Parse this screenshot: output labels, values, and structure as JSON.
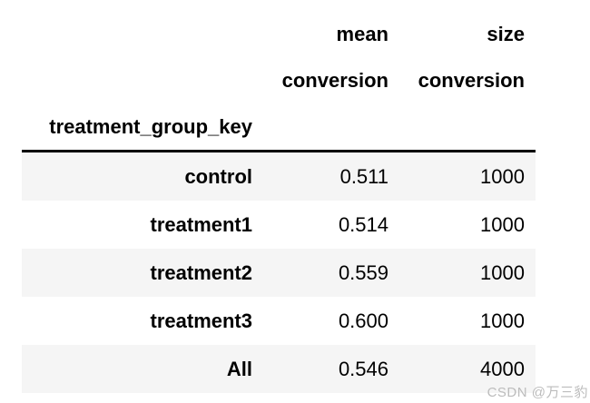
{
  "chart_data": {
    "type": "table",
    "index_name": "treatment_group_key",
    "header_row_top": [
      "mean",
      "size"
    ],
    "header_row_sub": [
      "conversion",
      "conversion"
    ],
    "columns": [
      "mean conversion",
      "size conversion"
    ],
    "rows": [
      {
        "key": "control",
        "cells": [
          "0.511",
          "1000"
        ]
      },
      {
        "key": "treatment1",
        "cells": [
          "0.514",
          "1000"
        ]
      },
      {
        "key": "treatment2",
        "cells": [
          "0.559",
          "1000"
        ]
      },
      {
        "key": "treatment3",
        "cells": [
          "0.600",
          "1000"
        ]
      },
      {
        "key": "All",
        "cells": [
          "0.546",
          "4000"
        ]
      }
    ],
    "layout": {
      "stripe_rows": "odd",
      "text_align": "right",
      "header_separator": "solid black line"
    }
  },
  "colors": {
    "background": "#ffffff",
    "row_stripe": "#f5f5f5",
    "text": "#000000",
    "header_border": "#000000",
    "watermark": "#bcbcbc"
  },
  "watermark": {
    "text": "CSDN @万三豹"
  }
}
